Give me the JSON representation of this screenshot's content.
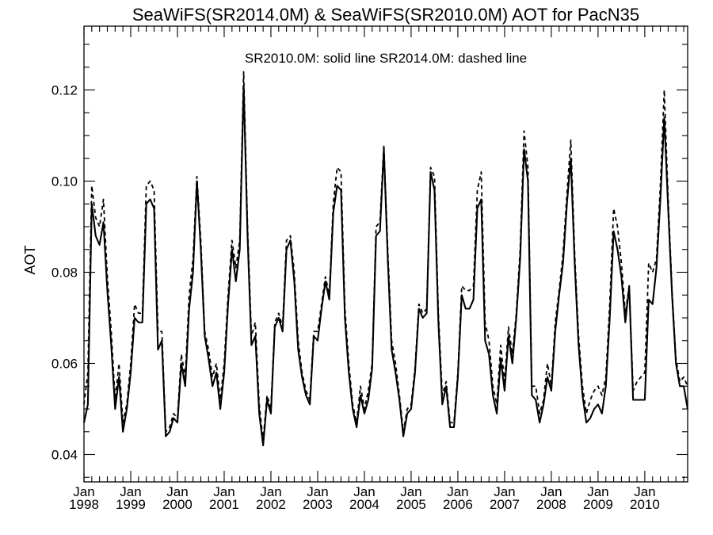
{
  "chart_data": {
    "type": "line",
    "title": "SeaWiFS(SR2014.0M) & SeaWiFS(SR2010.0M)  AOT for PacN35",
    "annotation": "SR2010.0M: solid line   SR2014.0M: dashed line",
    "ylabel": "AOT",
    "xlabel": "",
    "xlim": [
      1998.0,
      2010.917
    ],
    "ylim": [
      0.034,
      0.134
    ],
    "yticks": [
      0.04,
      0.06,
      0.08,
      0.1,
      0.12
    ],
    "ytick_labels": [
      "0.04",
      "0.06",
      "0.08",
      "0.10",
      "0.12"
    ],
    "xticks": [
      1998,
      1999,
      2000,
      2001,
      2002,
      2003,
      2004,
      2005,
      2006,
      2007,
      2008,
      2009,
      2010
    ],
    "xtick_month_label": "Jan",
    "xtick_year_labels": [
      "1998",
      "1999",
      "2000",
      "2001",
      "2002",
      "2003",
      "2004",
      "2005",
      "2006",
      "2007",
      "2008",
      "2009",
      "2010"
    ],
    "grid": false,
    "x_start": "1998-01",
    "x_step": "monthly",
    "series": [
      {
        "name": "SR2010.0M",
        "style": "solid",
        "values": [
          0.047,
          0.051,
          0.095,
          0.088,
          0.086,
          0.091,
          0.076,
          0.064,
          0.05,
          0.057,
          0.045,
          0.05,
          0.058,
          0.07,
          0.069,
          0.069,
          0.095,
          0.096,
          0.094,
          0.063,
          0.065,
          0.044,
          0.045,
          0.048,
          0.047,
          0.06,
          0.055,
          0.072,
          0.08,
          0.1,
          0.085,
          0.066,
          0.061,
          0.055,
          0.058,
          0.05,
          0.058,
          0.073,
          0.085,
          0.078,
          0.085,
          0.121,
          0.088,
          0.064,
          0.066,
          0.049,
          0.042,
          0.052,
          0.049,
          0.068,
          0.07,
          0.067,
          0.085,
          0.087,
          0.078,
          0.063,
          0.057,
          0.053,
          0.051,
          0.066,
          0.065,
          0.072,
          0.078,
          0.074,
          0.093,
          0.099,
          0.098,
          0.07,
          0.058,
          0.05,
          0.046,
          0.053,
          0.049,
          0.052,
          0.059,
          0.088,
          0.089,
          0.107,
          0.083,
          0.063,
          0.058,
          0.052,
          0.044,
          0.049,
          0.05,
          0.058,
          0.072,
          0.07,
          0.071,
          0.102,
          0.098,
          0.069,
          0.051,
          0.055,
          0.046,
          0.046,
          0.057,
          0.075,
          0.072,
          0.072,
          0.074,
          0.094,
          0.096,
          0.065,
          0.062,
          0.053,
          0.049,
          0.061,
          0.054,
          0.066,
          0.06,
          0.07,
          0.083,
          0.107,
          0.1,
          0.053,
          0.052,
          0.047,
          0.051,
          0.057,
          0.054,
          0.067,
          0.075,
          0.082,
          0.095,
          0.105,
          0.082,
          0.064,
          0.053,
          0.047,
          0.048,
          0.05,
          0.051,
          0.049,
          0.055,
          0.07,
          0.089,
          0.085,
          0.079,
          0.069,
          0.077,
          0.052,
          0.052,
          0.052,
          0.052,
          0.074,
          0.073,
          0.081,
          0.096,
          0.114,
          0.094,
          0.075,
          0.06,
          0.055,
          0.055,
          0.05
        ]
      },
      {
        "name": "SR2014.0M",
        "style": "dashed",
        "values": [
          0.051,
          0.058,
          0.099,
          0.092,
          0.09,
          0.096,
          0.079,
          0.067,
          0.052,
          0.06,
          0.047,
          0.051,
          0.06,
          0.073,
          0.071,
          0.071,
          0.099,
          0.1,
          0.098,
          0.067,
          0.067,
          0.045,
          0.046,
          0.049,
          0.048,
          0.062,
          0.057,
          0.075,
          0.083,
          0.101,
          0.087,
          0.067,
          0.063,
          0.057,
          0.06,
          0.052,
          0.06,
          0.075,
          0.087,
          0.081,
          0.087,
          0.124,
          0.09,
          0.066,
          0.069,
          0.051,
          0.043,
          0.053,
          0.05,
          0.069,
          0.071,
          0.068,
          0.087,
          0.088,
          0.08,
          0.065,
          0.058,
          0.054,
          0.052,
          0.067,
          0.067,
          0.073,
          0.079,
          0.075,
          0.095,
          0.103,
          0.102,
          0.072,
          0.06,
          0.051,
          0.047,
          0.055,
          0.05,
          0.054,
          0.06,
          0.09,
          0.091,
          0.108,
          0.085,
          0.065,
          0.06,
          0.053,
          0.045,
          0.05,
          0.051,
          0.059,
          0.073,
          0.071,
          0.072,
          0.103,
          0.101,
          0.071,
          0.053,
          0.056,
          0.047,
          0.047,
          0.058,
          0.077,
          0.076,
          0.076,
          0.077,
          0.098,
          0.102,
          0.069,
          0.065,
          0.055,
          0.051,
          0.064,
          0.056,
          0.068,
          0.062,
          0.071,
          0.085,
          0.111,
          0.103,
          0.055,
          0.055,
          0.049,
          0.052,
          0.06,
          0.055,
          0.069,
          0.076,
          0.084,
          0.097,
          0.109,
          0.084,
          0.066,
          0.055,
          0.049,
          0.052,
          0.054,
          0.055,
          0.053,
          0.057,
          0.073,
          0.094,
          0.09,
          0.082,
          0.071,
          0.077,
          0.054,
          0.056,
          0.057,
          0.058,
          0.082,
          0.08,
          0.083,
          0.099,
          0.12,
          0.096,
          0.076,
          0.061,
          0.056,
          0.057,
          0.055
        ]
      }
    ]
  }
}
